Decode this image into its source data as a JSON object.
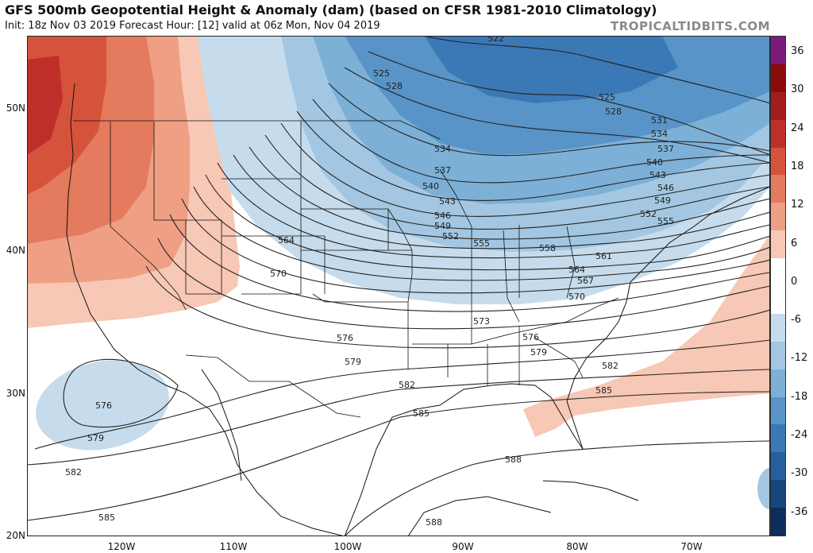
{
  "header": {
    "title": "GFS 500mb Geopotential Height & Anomaly (dam) (based on CFSR 1981-2010 Climatology)",
    "subtitle": "Init: 18z Nov 03 2019   Forecast Hour: [12]   valid at 06z Mon, Nov 04 2019",
    "credit": "TROPICALTIDBITS.COM"
  },
  "axes": {
    "lat_labels": [
      "50N",
      "40N",
      "30N",
      "20N"
    ],
    "lon_labels": [
      "120W",
      "110W",
      "100W",
      "90W",
      "80W",
      "70W"
    ]
  },
  "colorbar": {
    "labels": [
      "36",
      "30",
      "24",
      "18",
      "12",
      "6",
      "0",
      "-6",
      "-12",
      "-18",
      "-24",
      "-30",
      "-36"
    ],
    "colors": [
      "#7b1a7b",
      "#8b0a0a",
      "#a31d1d",
      "#bf2f2a",
      "#d6533b",
      "#e47a5e",
      "#ef9f83",
      "#f7c8b5",
      "#ffffff",
      "#ffffff",
      "#c6dcec",
      "#a3c7e2",
      "#7db0d6",
      "#5894c7",
      "#3b78b6",
      "#265fa0",
      "#17467f",
      "#0d2d5a"
    ]
  },
  "contour_labels": {
    "c522": "522",
    "c525a": "525",
    "c525b": "525",
    "c528a": "528",
    "c528b": "528",
    "c531": "531",
    "c534a": "534",
    "c534b": "534",
    "c537a": "537",
    "c537b": "537",
    "c540a": "540",
    "c540b": "540",
    "c543a": "543",
    "c543b": "543",
    "c546a": "546",
    "c546b": "546",
    "c549a": "549",
    "c549b": "549",
    "c552a": "552",
    "c552b": "552",
    "c555a": "555",
    "c555b": "555",
    "c558": "558",
    "c561": "561",
    "c564a": "564",
    "c564b": "564",
    "c567": "567",
    "c570a": "570",
    "c570b": "570",
    "c573": "573",
    "c576a": "576",
    "c576b": "576",
    "c576c": "576",
    "c579a": "579",
    "c579b": "579",
    "c579c": "579",
    "c582a": "582",
    "c582b": "582",
    "c582c": "582",
    "c585a": "585",
    "c585b": "585",
    "c585c": "585",
    "c588a": "588",
    "c588b": "588"
  }
}
